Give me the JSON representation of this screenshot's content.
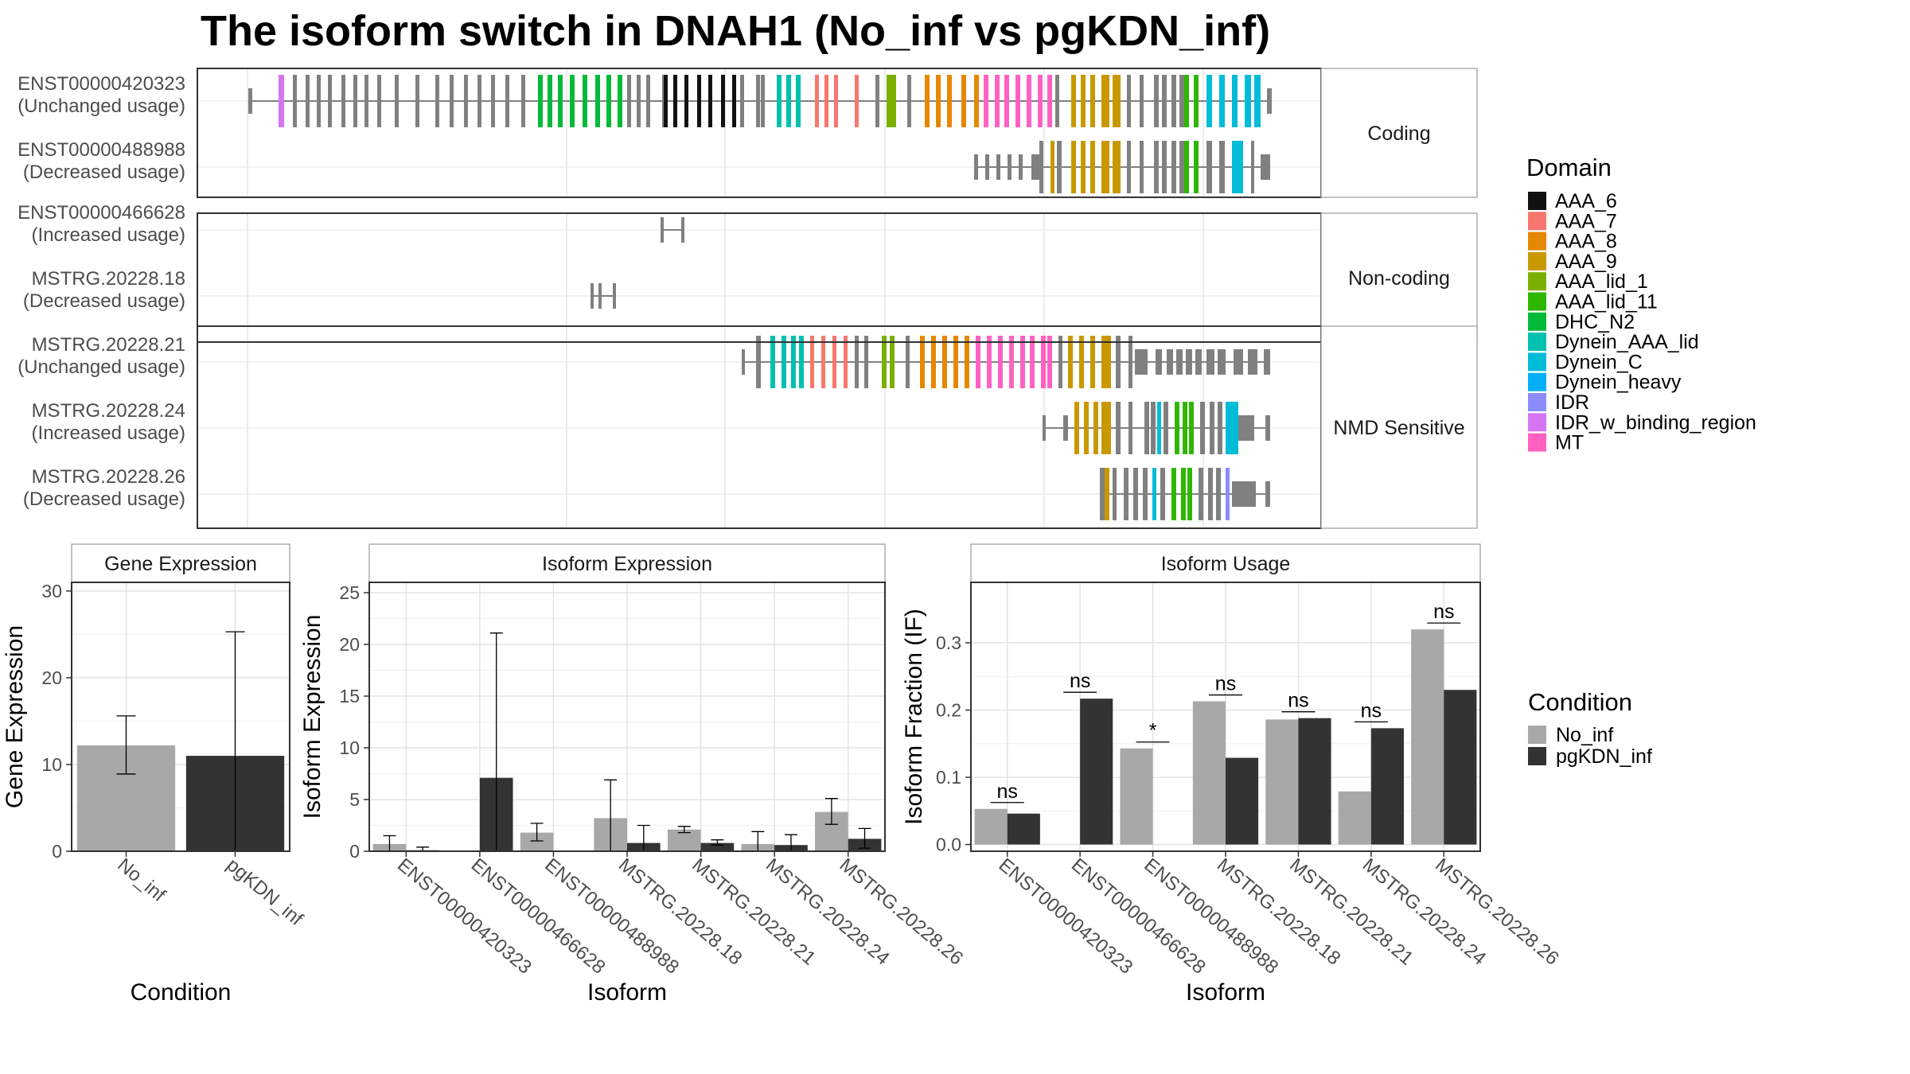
{
  "title": "The isoform switch in DNAH1 (No_inf vs pgKDN_inf)",
  "structure": {
    "groups": [
      {
        "label": "Coding",
        "isoforms": [
          0,
          1
        ]
      },
      {
        "label": "Non-coding",
        "isoforms": [
          2,
          3
        ]
      },
      {
        "label": "NMD Sensitive",
        "isoforms": [
          4,
          5,
          6
        ]
      }
    ],
    "isoforms": [
      {
        "name": "ENST00000420323",
        "usage": "(Unchanged usage)"
      },
      {
        "name": "ENST00000488988",
        "usage": "(Decreased usage)"
      },
      {
        "name": "ENST00000466628",
        "usage": "(Increased usage)"
      },
      {
        "name": "MSTRG.20228.18",
        "usage": "(Decreased usage)"
      },
      {
        "name": "MSTRG.20228.21",
        "usage": "(Unchanged usage)"
      },
      {
        "name": "MSTRG.20228.24",
        "usage": "(Increased usage)"
      },
      {
        "name": "MSTRG.20228.26",
        "usage": "(Decreased usage)"
      }
    ]
  },
  "domain_legend": {
    "title": "Domain",
    "entries": [
      {
        "name": "AAA_6",
        "color": "#111111"
      },
      {
        "name": "AAA_7",
        "color": "#F8766D"
      },
      {
        "name": "AAA_8",
        "color": "#E58700"
      },
      {
        "name": "AAA_9",
        "color": "#C99800"
      },
      {
        "name": "AAA_lid_1",
        "color": "#7CAE00"
      },
      {
        "name": "AAA_lid_11",
        "color": "#2FB600"
      },
      {
        "name": "DHC_N2",
        "color": "#00BA38"
      },
      {
        "name": "Dynein_AAA_lid",
        "color": "#00C0AF"
      },
      {
        "name": "Dynein_C",
        "color": "#00BCD8"
      },
      {
        "name": "Dynein_heavy",
        "color": "#00B0F6"
      },
      {
        "name": "IDR",
        "color": "#8C8CFF"
      },
      {
        "name": "IDR_w_binding_region",
        "color": "#D675F2"
      },
      {
        "name": "MT",
        "color": "#FF61C3"
      }
    ]
  },
  "condition_legend": {
    "title": "Condition",
    "entries": [
      {
        "name": "No_inf",
        "color": "#A8A8A8"
      },
      {
        "name": "pgKDN_inf",
        "color": "#333333"
      }
    ]
  },
  "chart_data": [
    {
      "type": "bar",
      "panel": "Gene Expression",
      "categories": [
        "No_inf",
        "pgKDN_inf"
      ],
      "values": [
        12.2,
        11.0
      ],
      "error_low": [
        8.9,
        0.0
      ],
      "error_high": [
        15.6,
        25.3
      ],
      "ylabel": "Gene Expression",
      "xlabel": "Condition",
      "ylim": [
        0,
        31
      ],
      "yticks": [
        0,
        10,
        20,
        30
      ]
    },
    {
      "type": "bar",
      "panel": "Isoform Expression",
      "categories": [
        "ENST00000420323",
        "ENST00000466628",
        "ENST00000488988",
        "MSTRG.20228.18",
        "MSTRG.20228.21",
        "MSTRG.20228.24",
        "MSTRG.20228.26"
      ],
      "series": [
        {
          "name": "No_inf",
          "values": [
            0.7,
            0.0,
            1.8,
            3.2,
            2.1,
            0.7,
            3.8
          ],
          "error_low": [
            0.0,
            0.0,
            1.0,
            0.0,
            1.8,
            0.0,
            2.6
          ],
          "error_high": [
            1.5,
            0.0,
            2.7,
            6.9,
            2.4,
            1.9,
            5.1
          ]
        },
        {
          "name": "pgKDN_inf",
          "values": [
            0.1,
            7.1,
            0.0,
            0.8,
            0.8,
            0.6,
            1.2
          ],
          "error_low": [
            0.0,
            0.0,
            0.0,
            0.0,
            0.6,
            0.0,
            0.3
          ],
          "error_high": [
            0.4,
            21.1,
            0.0,
            2.5,
            1.1,
            1.6,
            2.2
          ]
        }
      ],
      "ylabel": "Isoform Expression",
      "xlabel": "Isoform",
      "ylim": [
        0,
        26
      ],
      "yticks": [
        0,
        5,
        10,
        15,
        20,
        25
      ]
    },
    {
      "type": "bar",
      "panel": "Isoform Usage",
      "categories": [
        "ENST00000420323",
        "ENST00000466628",
        "ENST00000488988",
        "MSTRG.20228.18",
        "MSTRG.20228.21",
        "MSTRG.20228.24",
        "MSTRG.20228.26"
      ],
      "series": [
        {
          "name": "No_inf",
          "values": [
            0.053,
            0.0,
            0.143,
            0.213,
            0.186,
            0.079,
            0.32
          ]
        },
        {
          "name": "pgKDN_inf",
          "values": [
            0.046,
            0.217,
            0.0,
            0.129,
            0.188,
            0.173,
            0.23
          ]
        }
      ],
      "significance": [
        "ns",
        "ns",
        "*",
        "ns",
        "ns",
        "ns",
        "ns"
      ],
      "ylabel": "Isoform Fraction (IF)",
      "xlabel": "Isoform",
      "ylim": [
        -0.01,
        0.39
      ],
      "yticks": [
        0.0,
        0.1,
        0.2,
        0.3
      ]
    }
  ]
}
